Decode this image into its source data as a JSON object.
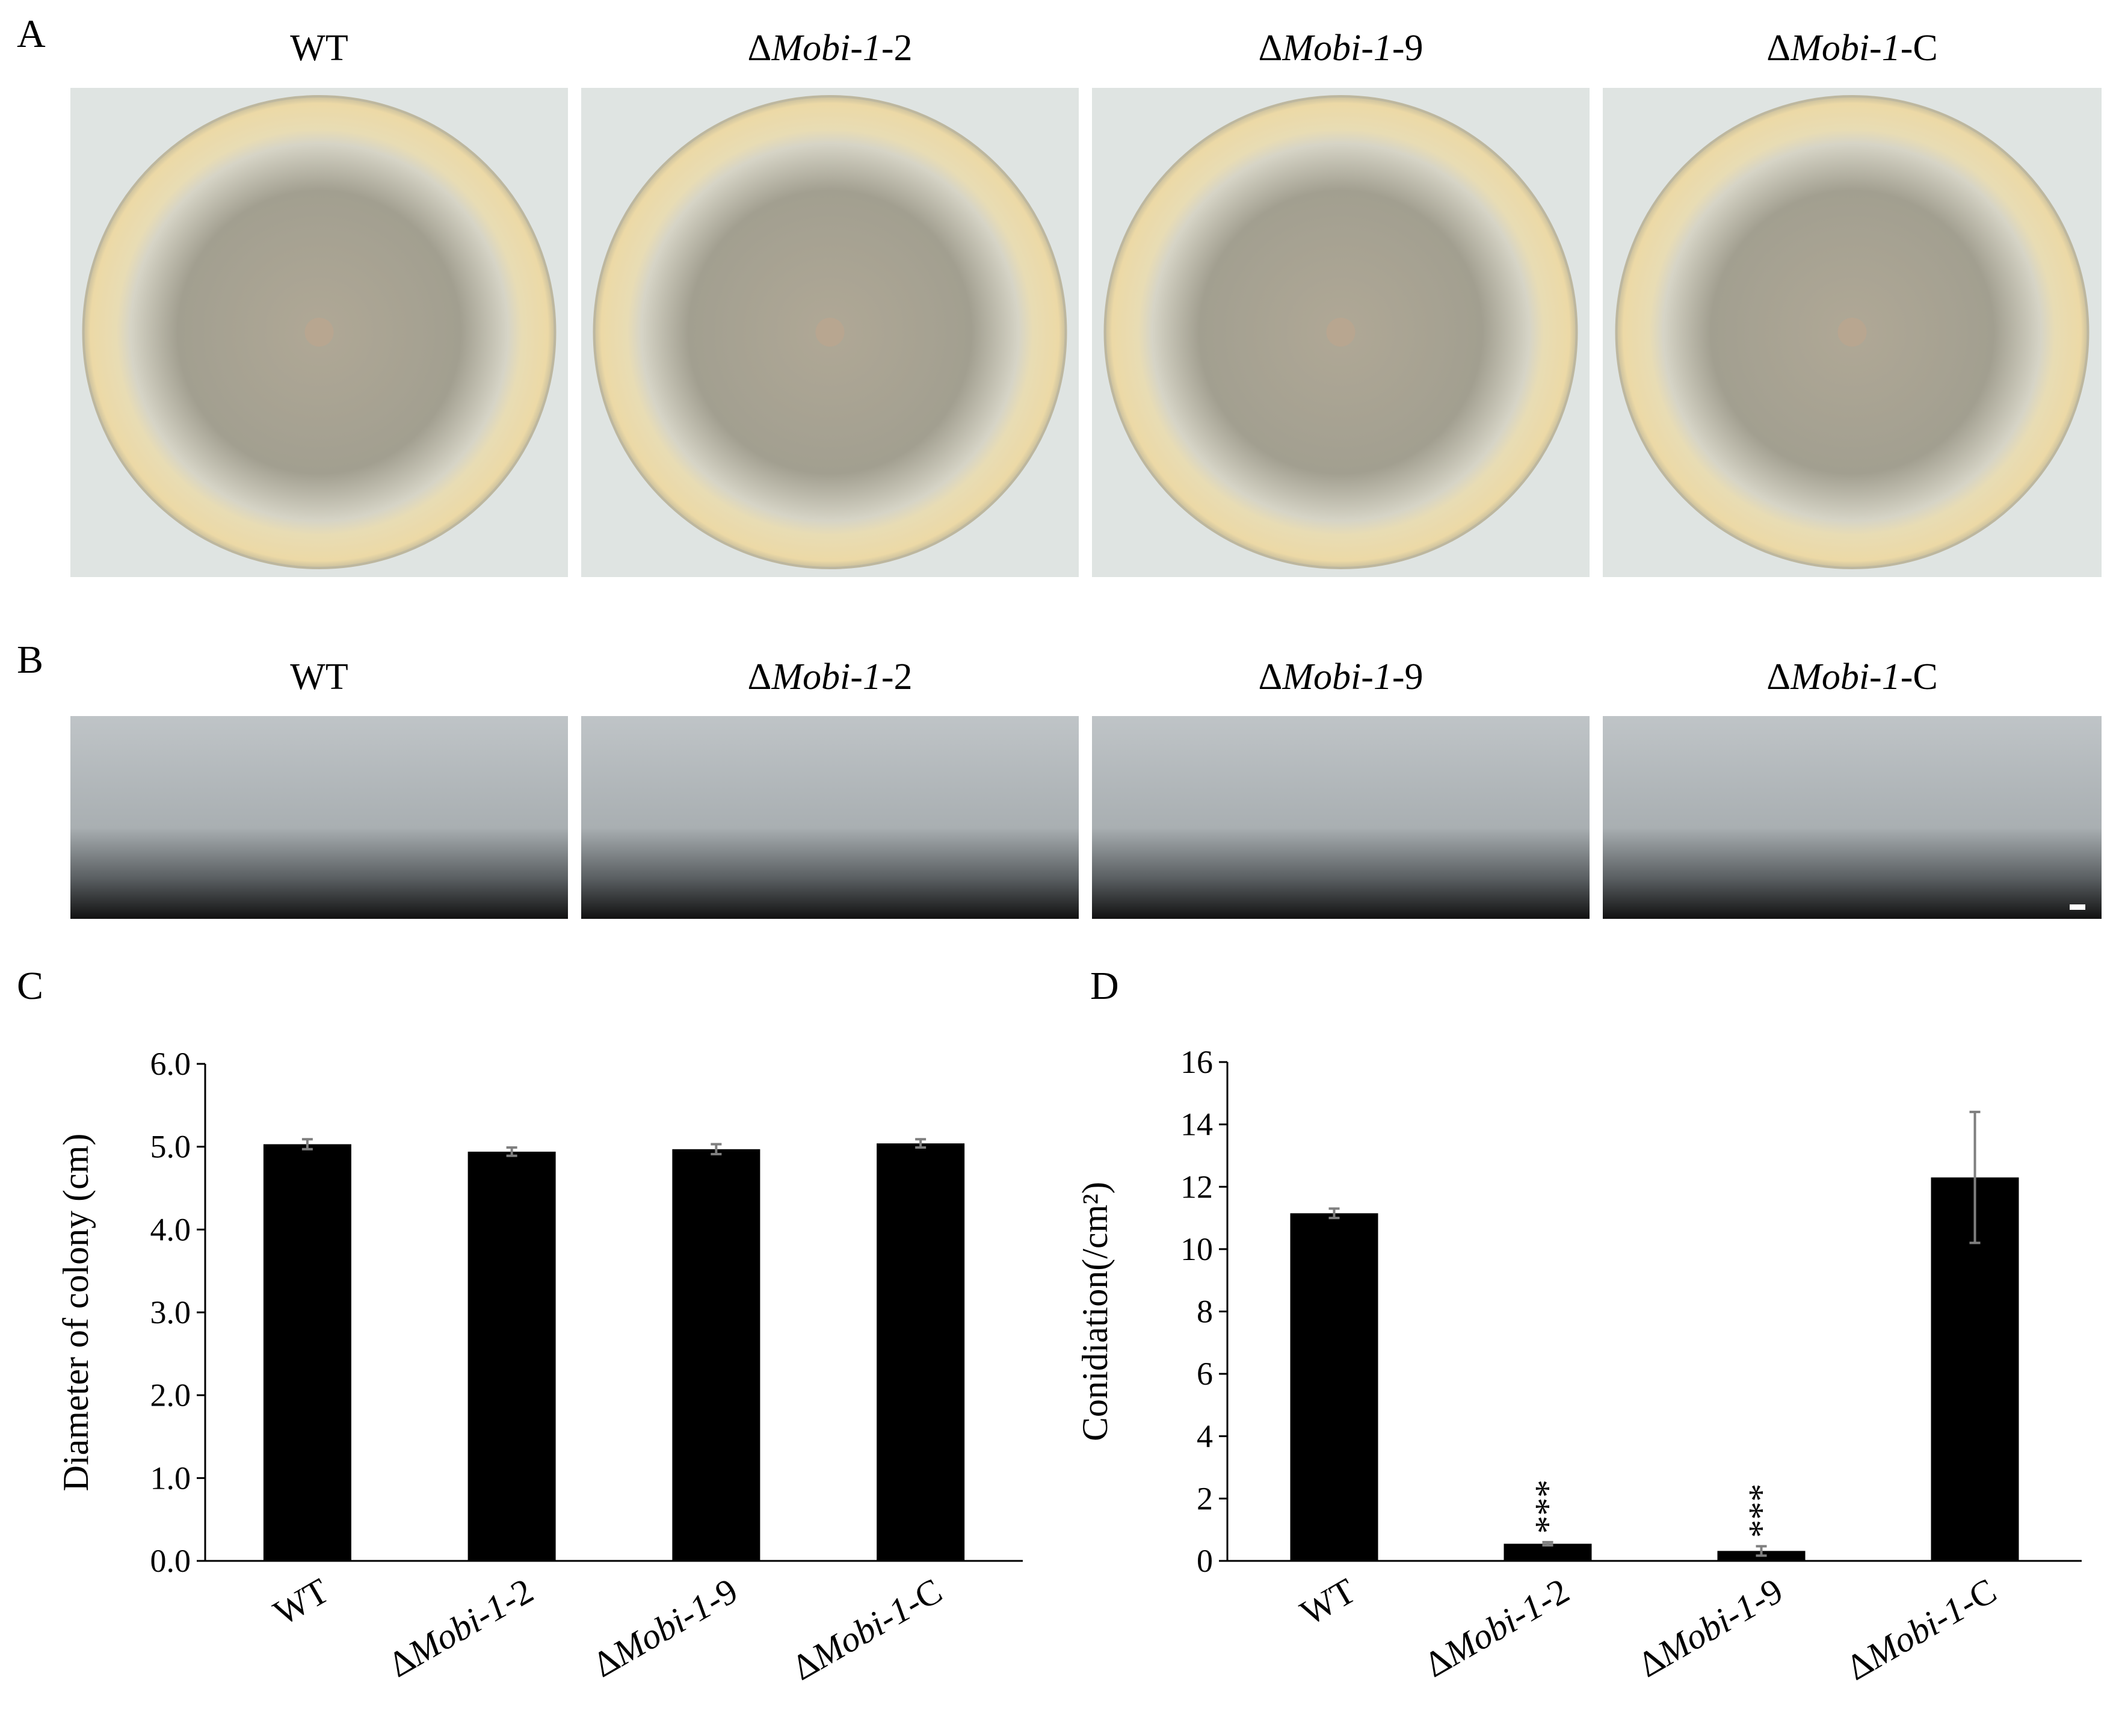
{
  "panel_labels": [
    "A",
    "B",
    "C",
    "D"
  ],
  "photo_labels": [
    {
      "prefix": "WT"
    },
    {
      "prefix": "Δ",
      "italic": "Mobi-1",
      "suffix": "-2"
    },
    {
      "prefix": "Δ",
      "italic": "Mobi-1",
      "suffix": "-9"
    },
    {
      "prefix": "Δ",
      "italic": "Mobi-1",
      "suffix": "-C"
    }
  ],
  "chart_data": [
    {
      "type": "bar",
      "ylabel": "Diameter of colony (cm)",
      "categories": [
        {
          "prefix": "WT"
        },
        {
          "prefix": "Δ",
          "italic": "Mobi-1",
          "suffix": "-2"
        },
        {
          "prefix": "Δ",
          "italic": "Mobi-1",
          "suffix": "-9"
        },
        {
          "prefix": "Δ",
          "italic": "Mobi-1",
          "suffix": "-C"
        }
      ],
      "values": [
        5.03,
        4.94,
        4.97,
        5.04
      ],
      "errors": [
        0.06,
        0.05,
        0.06,
        0.05
      ],
      "color": "#000000",
      "error_color": "#7f7f7f",
      "ylim": [
        0,
        6
      ],
      "yticks": [
        {
          "value": 0,
          "label": "0.0"
        },
        {
          "value": 1,
          "label": "1.0"
        },
        {
          "value": 2,
          "label": "2.0"
        },
        {
          "value": 3,
          "label": "3.0"
        },
        {
          "value": 4,
          "label": "4.0"
        },
        {
          "value": 5,
          "label": "5.0"
        },
        {
          "value": 6,
          "label": "6.0"
        }
      ]
    },
    {
      "type": "bar",
      "ylabel": "Conidiation(/cm²)",
      "categories": [
        {
          "prefix": "WT"
        },
        {
          "prefix": "Δ",
          "italic": "Mobi-1",
          "suffix": "-2"
        },
        {
          "prefix": "Δ",
          "italic": "Mobi-1",
          "suffix": "-9"
        },
        {
          "prefix": "Δ",
          "italic": "Mobi-1",
          "suffix": "-C"
        }
      ],
      "values": [
        11.15,
        0.55,
        0.32,
        12.3
      ],
      "errors": [
        0.15,
        0.05,
        0.15,
        2.1
      ],
      "annotations": [
        null,
        "***",
        "***",
        null
      ],
      "color": "#000000",
      "error_color": "#7f7f7f",
      "ylim": [
        0,
        16
      ],
      "yticks": [
        0,
        2,
        4,
        6,
        8,
        10,
        12,
        14,
        16
      ]
    }
  ]
}
